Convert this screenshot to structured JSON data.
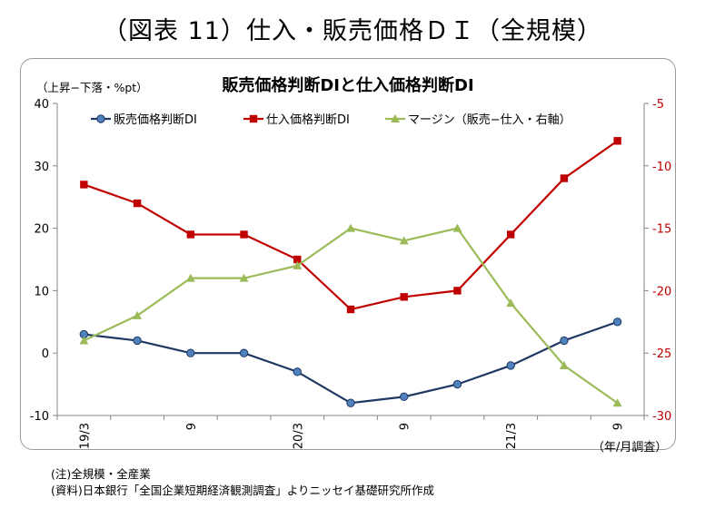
{
  "page_title": "（図表 11）仕入・販売価格ＤＩ（全規模）",
  "notes": [
    "(注)全規模・全産業",
    "(資料)日本銀行「全国企業短期経済観測調査」よりニッセイ基礎研究所作成"
  ],
  "colors": {
    "sales": "#1f3864",
    "sales_marker": "#4f81bd",
    "purchase": "#c00000",
    "purchase_line": "#c0504d",
    "margin": "#9bbb59",
    "right_axis": "#c00000"
  },
  "chart_data": {
    "type": "line",
    "title": "販売価格判断DIと仕入価格判断DI",
    "ylabel": "（上昇−下落・%pt）",
    "xlabel": "（年/月調査）",
    "categories": [
      "19/3",
      "19/6",
      "19/9",
      "19/12",
      "20/3",
      "20/6",
      "20/9",
      "20/12",
      "21/3",
      "21/6",
      "21/9"
    ],
    "x_tick_labels": [
      "19/3",
      "",
      "9",
      "",
      "20/3",
      "",
      "9",
      "",
      "21/3",
      "",
      "9"
    ],
    "ylim": [
      -10,
      40
    ],
    "y_ticks": [
      40,
      30,
      20,
      10,
      0,
      -10
    ],
    "y2lim": [
      -30,
      -5
    ],
    "y2_ticks": [
      -5,
      -10,
      -15,
      -20,
      -25,
      -30
    ],
    "legend_position": "top",
    "grid": false,
    "series": [
      {
        "name": "販売価格判断DI",
        "axis": "left",
        "marker": "circle",
        "values": [
          3,
          2,
          0,
          0,
          -3,
          -8,
          -7,
          -5,
          -2,
          2,
          5
        ]
      },
      {
        "name": "仕入価格判断DI",
        "axis": "left",
        "marker": "square",
        "values": [
          27,
          24,
          19,
          19,
          15,
          7,
          9,
          10,
          19,
          28,
          34
        ]
      },
      {
        "name": "マージン（販売−仕入・右軸）",
        "axis": "right",
        "marker": "triangle",
        "values": [
          -24,
          -22,
          -19,
          -19,
          -18,
          -15,
          -16,
          -15,
          -21,
          -26,
          -29
        ]
      }
    ]
  }
}
